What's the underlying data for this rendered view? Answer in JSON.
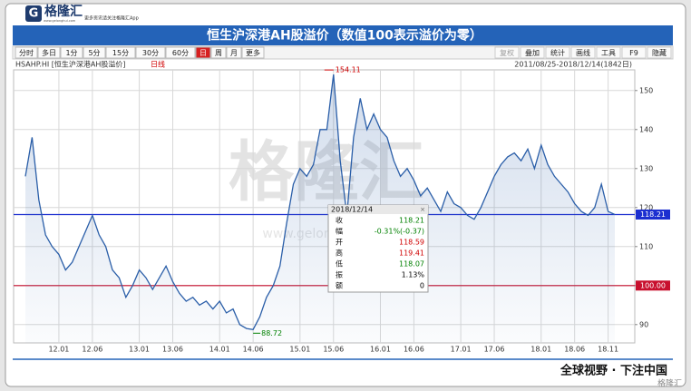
{
  "header": {
    "logo": "格隆汇",
    "slogan": "更多资讯请关注格隆汇App",
    "site": "www.gelonghui.com"
  },
  "toolbar": {
    "left": [
      "分时",
      "多日",
      "1分",
      "5分",
      "15分",
      "30分",
      "60分",
      "日",
      "周",
      "月",
      "更多"
    ],
    "right": [
      "复权",
      "叠加",
      "统计",
      "画线",
      "工具",
      "F9",
      "隐藏"
    ]
  },
  "info": {
    "symbol": "HSAHP.HI [恒生沪深港AH股溢价]",
    "period": "日线",
    "range": "2011/08/25-2018/12/14(1842日)"
  },
  "watermark": {
    "logo": "格隆汇",
    "site": "www.gelonghui.com"
  },
  "tooltip": {
    "date": "2018/12/14",
    "rows": [
      {
        "label": "收",
        "value": "118.21",
        "color": "#008000"
      },
      {
        "label": "幅",
        "value": "-0.31%(-0.37)",
        "color": "#008000"
      },
      {
        "label": "开",
        "value": "118.59",
        "color": "#d00000"
      },
      {
        "label": "高",
        "value": "119.41",
        "color": "#d00000"
      },
      {
        "label": "低",
        "value": "118.07",
        "color": "#008000"
      },
      {
        "label": "振",
        "value": "1.13%",
        "color": "#000000"
      },
      {
        "label": "额",
        "value": "0",
        "color": "#000000"
      }
    ]
  },
  "footer": {
    "slogan": "全球视野 · 下注中国",
    "brand": "格隆汇"
  },
  "chart_data": {
    "type": "line",
    "title": "恒生沪深港AH股溢价（数值100表示溢价为零）",
    "categories": [
      null,
      null,
      null,
      null,
      null,
      "12.01",
      null,
      null,
      null,
      null,
      "12.06",
      null,
      null,
      null,
      null,
      null,
      null,
      "13.01",
      null,
      null,
      null,
      null,
      "13.06",
      null,
      null,
      null,
      null,
      null,
      null,
      "14.01",
      null,
      null,
      null,
      null,
      "14.06",
      null,
      null,
      null,
      null,
      null,
      null,
      "15.01",
      null,
      null,
      null,
      null,
      "15.06",
      null,
      null,
      null,
      null,
      null,
      null,
      "16.01",
      null,
      null,
      null,
      null,
      "16.06",
      null,
      null,
      null,
      null,
      null,
      null,
      "17.01",
      null,
      null,
      null,
      null,
      "17.06",
      null,
      null,
      null,
      null,
      null,
      null,
      "18.01",
      null,
      null,
      null,
      null,
      "18.06",
      null,
      null,
      null,
      null,
      "18.11",
      null
    ],
    "series": [
      {
        "name": "HSAHP.HI",
        "color": "#2a5ea8",
        "values": [
          128,
          138,
          122,
          113,
          110,
          108,
          104,
          106,
          110,
          114,
          118,
          113,
          110,
          104,
          102,
          97,
          100,
          104,
          102,
          99,
          102,
          105,
          101,
          98,
          96,
          97,
          95,
          96,
          94,
          96,
          93,
          94,
          90,
          89,
          88.72,
          92,
          97,
          100,
          105,
          116,
          126,
          130,
          128,
          131,
          140,
          140,
          154.11,
          132,
          118,
          138,
          148,
          140,
          144,
          140,
          138,
          132,
          128,
          130,
          127,
          123,
          125,
          122,
          119,
          124,
          121,
          120,
          118,
          117,
          120,
          124,
          128,
          131,
          133,
          134,
          132,
          135,
          130,
          136,
          131,
          128,
          126,
          124,
          121,
          119,
          118,
          120,
          126,
          119,
          118.21
        ]
      }
    ],
    "ylim": [
      85.3,
      155.3
    ],
    "yticks": [
      90,
      100,
      110,
      120,
      130,
      140,
      150
    ],
    "grid": true,
    "reference_lines": [
      {
        "value": 118.21,
        "label": "118.21",
        "color": "#1c2fd0"
      },
      {
        "value": 100,
        "label": "100.00",
        "color": "#c8102e"
      }
    ]
  }
}
